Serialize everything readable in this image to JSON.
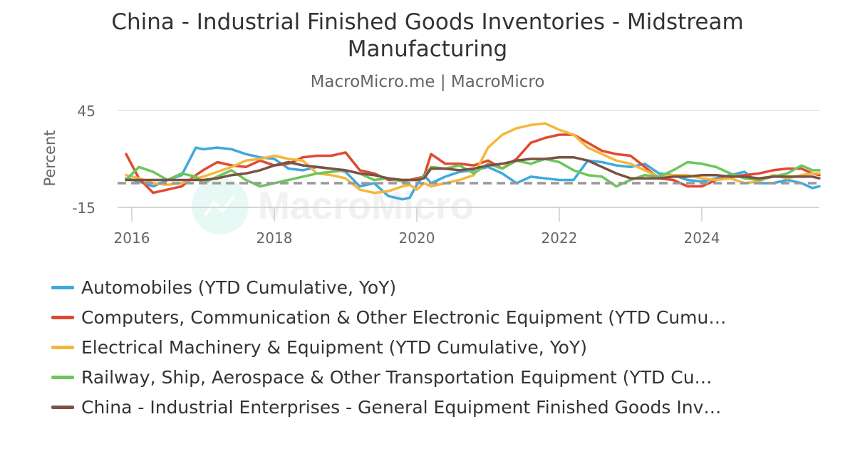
{
  "title": "China - Industrial Finished Goods Inventories - Midstream Manufacturing",
  "subtitle": "MacroMicro.me | MacroMicro",
  "watermark": "MacroMicro",
  "chart_data": {
    "type": "line",
    "ylabel": "Percent",
    "ylim": [
      -15,
      45
    ],
    "yticks": [
      45,
      -15
    ],
    "xlim": [
      2015.8,
      2025.65
    ],
    "xticks": [
      2016,
      2018,
      2020,
      2022,
      2024
    ],
    "reference_line": 0,
    "grid": "horizontal",
    "legend_position": "bottom",
    "series": [
      {
        "name": "Automobiles (YTD Cumulative, YoY)",
        "color": "#3fa9dc",
        "x": [
          2015.92,
          2016.1,
          2016.3,
          2016.5,
          2016.7,
          2016.9,
          2017.0,
          2017.2,
          2017.4,
          2017.6,
          2017.8,
          2018.0,
          2018.2,
          2018.4,
          2018.6,
          2018.8,
          2019.0,
          2019.2,
          2019.4,
          2019.6,
          2019.8,
          2019.9,
          2020.0,
          2020.1,
          2020.2,
          2020.4,
          2020.6,
          2020.8,
          2021.0,
          2021.2,
          2021.4,
          2021.6,
          2021.8,
          2022.0,
          2022.2,
          2022.4,
          2022.6,
          2022.8,
          2023.0,
          2023.2,
          2023.4,
          2023.6,
          2023.8,
          2024.0,
          2024.2,
          2024.4,
          2024.6,
          2024.8,
          2025.0,
          2025.2,
          2025.4,
          2025.55,
          2025.65
        ],
        "values": [
          3,
          1,
          -2,
          2,
          5,
          22,
          21,
          22,
          21,
          18,
          16,
          15,
          9,
          8,
          10,
          9,
          7,
          -2,
          0,
          -8,
          -10,
          -9,
          -1,
          5,
          0,
          4,
          7,
          8,
          10,
          6,
          0,
          4,
          3,
          2,
          2,
          14,
          13,
          11,
          10,
          12,
          6,
          5,
          2,
          1,
          3,
          5,
          7,
          0,
          0,
          2,
          0,
          -3,
          -2
        ]
      },
      {
        "name": "Computers, Communication & Other Electronic Equipment (YTD Cumu…",
        "color": "#e04a32",
        "x": [
          2015.92,
          2016.1,
          2016.3,
          2016.5,
          2016.7,
          2016.9,
          2017.0,
          2017.2,
          2017.4,
          2017.6,
          2017.8,
          2018.0,
          2018.2,
          2018.4,
          2018.6,
          2018.8,
          2019.0,
          2019.2,
          2019.4,
          2019.6,
          2019.8,
          2019.9,
          2020.0,
          2020.1,
          2020.2,
          2020.4,
          2020.6,
          2020.8,
          2021.0,
          2021.2,
          2021.4,
          2021.6,
          2021.8,
          2022.0,
          2022.2,
          2022.4,
          2022.6,
          2022.8,
          2023.0,
          2023.2,
          2023.4,
          2023.6,
          2023.8,
          2024.0,
          2024.2,
          2024.4,
          2024.6,
          2024.8,
          2025.0,
          2025.2,
          2025.4,
          2025.55,
          2025.65
        ],
        "values": [
          18,
          3,
          -6,
          -4,
          -2,
          5,
          8,
          13,
          11,
          10,
          14,
          11,
          12,
          16,
          17,
          17,
          19,
          8,
          6,
          2,
          2,
          2,
          3,
          4,
          18,
          12,
          12,
          11,
          14,
          9,
          15,
          25,
          28,
          30,
          30,
          25,
          20,
          18,
          17,
          10,
          3,
          2,
          -2,
          -2,
          2,
          4,
          5,
          6,
          8,
          9,
          9,
          6,
          5
        ]
      },
      {
        "name": "Electrical Machinery & Equipment (YTD Cumulative, YoY)",
        "color": "#f5b73b",
        "x": [
          2015.92,
          2016.1,
          2016.3,
          2016.5,
          2016.7,
          2016.9,
          2017.0,
          2017.2,
          2017.4,
          2017.6,
          2017.8,
          2018.0,
          2018.2,
          2018.4,
          2018.6,
          2018.8,
          2019.0,
          2019.2,
          2019.4,
          2019.6,
          2019.8,
          2019.9,
          2020.0,
          2020.1,
          2020.2,
          2020.4,
          2020.6,
          2020.8,
          2021.0,
          2021.2,
          2021.4,
          2021.6,
          2021.8,
          2022.0,
          2022.2,
          2022.4,
          2022.6,
          2022.8,
          2023.0,
          2023.2,
          2023.4,
          2023.6,
          2023.8,
          2024.0,
          2024.2,
          2024.4,
          2024.6,
          2024.8,
          2025.0,
          2025.2,
          2025.4,
          2025.55,
          2025.65
        ],
        "values": [
          5,
          3,
          0,
          -1,
          0,
          3,
          4,
          7,
          10,
          14,
          15,
          17,
          15,
          14,
          6,
          5,
          3,
          -4,
          -6,
          -5,
          -2,
          -1,
          -4,
          0,
          -2,
          0,
          2,
          5,
          22,
          30,
          34,
          36,
          37,
          33,
          30,
          22,
          18,
          14,
          12,
          8,
          4,
          5,
          5,
          3,
          2,
          3,
          0,
          1,
          5,
          3,
          5,
          6,
          6
        ]
      },
      {
        "name": "Railway, Ship, Aerospace & Other Transportation Equipment (YTD Cu…",
        "color": "#6cc65a",
        "x": [
          2015.92,
          2016.1,
          2016.3,
          2016.5,
          2016.7,
          2016.9,
          2017.0,
          2017.2,
          2017.4,
          2017.6,
          2017.8,
          2018.0,
          2018.2,
          2018.4,
          2018.6,
          2018.8,
          2019.0,
          2019.2,
          2019.4,
          2019.6,
          2019.8,
          2019.9,
          2020.0,
          2020.1,
          2020.2,
          2020.4,
          2020.6,
          2020.8,
          2021.0,
          2021.2,
          2021.4,
          2021.6,
          2021.8,
          2022.0,
          2022.2,
          2022.4,
          2022.6,
          2022.8,
          2023.0,
          2023.2,
          2023.4,
          2023.6,
          2023.8,
          2024.0,
          2024.2,
          2024.4,
          2024.6,
          2024.8,
          2025.0,
          2025.2,
          2025.4,
          2025.55,
          2025.65
        ],
        "values": [
          2,
          10,
          7,
          2,
          6,
          4,
          0,
          4,
          8,
          2,
          -2,
          0,
          2,
          4,
          6,
          7,
          8,
          6,
          2,
          3,
          1,
          2,
          2,
          4,
          10,
          9,
          11,
          6,
          12,
          9,
          14,
          12,
          15,
          13,
          8,
          5,
          4,
          -2,
          2,
          5,
          4,
          8,
          13,
          12,
          10,
          6,
          3,
          2,
          4,
          6,
          11,
          8,
          8
        ]
      },
      {
        "name": "China - Industrial Enterprises - General Equipment Finished Goods Inv…",
        "color": "#7b5244",
        "x": [
          2015.92,
          2016.1,
          2016.3,
          2016.5,
          2016.7,
          2016.9,
          2017.0,
          2017.2,
          2017.4,
          2017.6,
          2017.8,
          2018.0,
          2018.2,
          2018.4,
          2018.6,
          2018.8,
          2019.0,
          2019.2,
          2019.4,
          2019.6,
          2019.8,
          2019.9,
          2020.0,
          2020.1,
          2020.2,
          2020.4,
          2020.6,
          2020.8,
          2021.0,
          2021.2,
          2021.4,
          2021.6,
          2021.8,
          2022.0,
          2022.2,
          2022.4,
          2022.6,
          2022.8,
          2023.0,
          2023.2,
          2023.4,
          2023.6,
          2023.8,
          2024.0,
          2024.2,
          2024.4,
          2024.6,
          2024.8,
          2025.0,
          2025.2,
          2025.4,
          2025.55,
          2025.65
        ],
        "values": [
          2,
          2,
          2,
          2,
          2,
          2,
          2,
          3,
          5,
          6,
          8,
          11,
          13,
          11,
          10,
          9,
          8,
          6,
          5,
          3,
          2,
          2,
          2,
          3,
          9,
          9,
          8,
          9,
          11,
          12,
          14,
          15,
          15,
          16,
          16,
          14,
          10,
          6,
          3,
          3,
          3,
          4,
          4,
          5,
          5,
          4,
          4,
          3,
          4,
          4,
          4,
          4,
          3
        ]
      }
    ]
  }
}
